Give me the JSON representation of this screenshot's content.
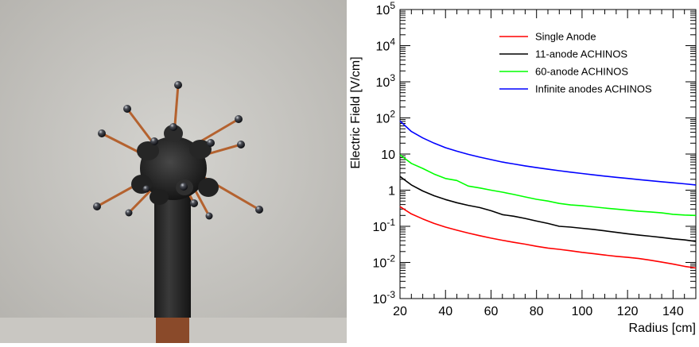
{
  "photo": {
    "subject_icon": "achinos-detector-photo"
  },
  "chart_data": {
    "type": "line",
    "title": "",
    "xlabel": "Radius [cm]",
    "ylabel": "Electric Field [V/cm]",
    "xlim": [
      20,
      150
    ],
    "ylim": [
      0.001,
      100000
    ],
    "yscale": "log",
    "grid": false,
    "legend_position": "top-right",
    "x_ticks": [
      "20",
      "40",
      "60",
      "80",
      "100",
      "120",
      "140"
    ],
    "y_ticks": [
      {
        "base": "10",
        "exp": "-3"
      },
      {
        "base": "10",
        "exp": "-2"
      },
      {
        "base": "10",
        "exp": "-1"
      },
      {
        "base": "1",
        "exp": ""
      },
      {
        "base": "10",
        "exp": ""
      },
      {
        "base": "10",
        "exp": "2"
      },
      {
        "base": "10",
        "exp": "3"
      },
      {
        "base": "10",
        "exp": "4"
      },
      {
        "base": "10",
        "exp": "5"
      }
    ],
    "x": [
      20,
      25,
      30,
      35,
      40,
      45,
      50,
      55,
      60,
      65,
      70,
      75,
      80,
      85,
      90,
      95,
      100,
      105,
      110,
      115,
      120,
      125,
      130,
      135,
      140,
      145,
      150
    ],
    "series": [
      {
        "name": "Single Anode",
        "color": "#ff0000",
        "values": [
          0.35,
          0.22,
          0.16,
          0.12,
          0.095,
          0.078,
          0.065,
          0.055,
          0.047,
          0.041,
          0.036,
          0.032,
          0.028,
          0.025,
          0.023,
          0.021,
          0.019,
          0.0175,
          0.016,
          0.0148,
          0.0138,
          0.0128,
          0.0115,
          0.0102,
          0.009,
          0.0078,
          0.007
        ]
      },
      {
        "name": "11-anode ACHINOS",
        "color": "#000000",
        "values": [
          2.4,
          1.4,
          0.95,
          0.7,
          0.55,
          0.45,
          0.38,
          0.33,
          0.27,
          0.21,
          0.19,
          0.165,
          0.14,
          0.12,
          0.1,
          0.095,
          0.088,
          0.082,
          0.075,
          0.068,
          0.062,
          0.057,
          0.053,
          0.049,
          0.045,
          0.042,
          0.038
        ]
      },
      {
        "name": "60-anode ACHINOS",
        "color": "#00ff00",
        "values": [
          9.5,
          5.5,
          4.0,
          2.8,
          2.1,
          1.85,
          1.3,
          1.15,
          1.0,
          0.88,
          0.76,
          0.65,
          0.56,
          0.5,
          0.43,
          0.39,
          0.37,
          0.345,
          0.32,
          0.3,
          0.28,
          0.26,
          0.25,
          0.235,
          0.215,
          0.205,
          0.2
        ]
      },
      {
        "name": "Infinite anodes ACHINOS",
        "color": "#0000ff",
        "values": [
          82,
          42,
          28,
          20,
          15,
          12,
          9.8,
          8.2,
          7.0,
          6.0,
          5.3,
          4.7,
          4.2,
          3.8,
          3.45,
          3.15,
          2.9,
          2.65,
          2.45,
          2.27,
          2.11,
          1.96,
          1.83,
          1.71,
          1.6,
          1.5,
          1.4
        ]
      }
    ]
  }
}
